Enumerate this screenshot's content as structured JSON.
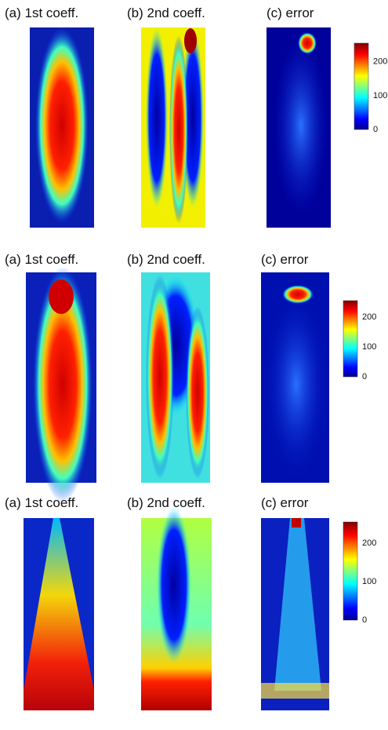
{
  "rows": [
    {
      "panels": [
        "(a) 1st coeff.",
        "(b) 2nd coeff.",
        "(c) error"
      ],
      "colorbar_ticks": [
        0,
        100,
        200
      ]
    },
    {
      "panels": [
        "(a) 1st coeff.",
        "(b) 2nd coeff.",
        "(c) error"
      ],
      "colorbar_ticks": [
        0,
        100,
        200
      ]
    },
    {
      "panels": [
        "(a) 1st coeff.",
        "(b) 2nd coeff.",
        "(c) error"
      ],
      "colorbar_ticks": [
        0,
        100,
        200
      ]
    }
  ]
}
